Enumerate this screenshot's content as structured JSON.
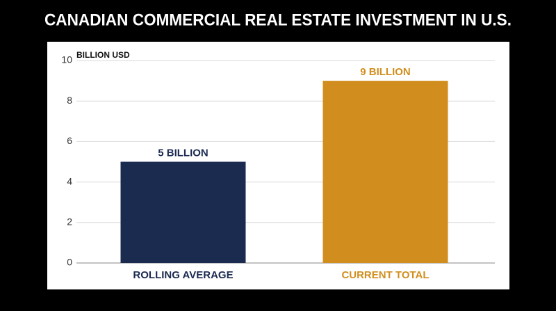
{
  "chart_data": {
    "type": "bar",
    "title": "CANADIAN COMMERCIAL REAL ESTATE INVESTMENT IN U.S.",
    "y_label": "BILLION USD",
    "categories": [
      "ROLLING AVERAGE",
      "CURRENT TOTAL"
    ],
    "values": [
      5,
      9
    ],
    "value_labels": [
      "5 BILLION",
      "9 BILLION"
    ],
    "colors": [
      "#1b2b50",
      "#d18e1e"
    ],
    "ylim": [
      0,
      10
    ],
    "yticks": [
      0,
      2,
      4,
      6,
      8,
      10
    ],
    "grid": true
  }
}
